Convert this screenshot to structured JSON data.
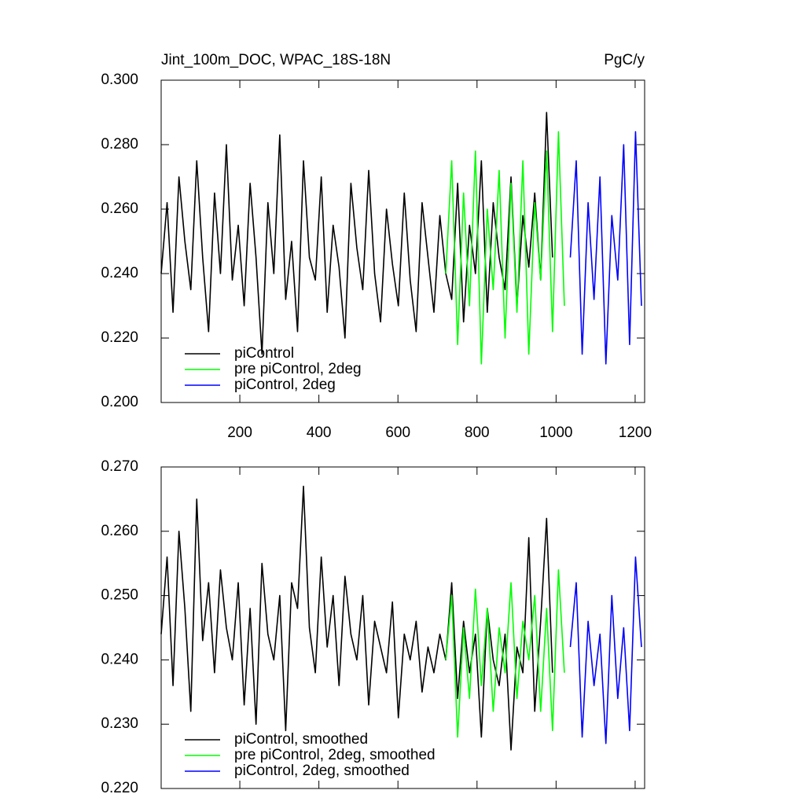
{
  "chart_data": [
    {
      "type": "line",
      "title": "Jint_100m_DOC, WPAC_18S-18N",
      "units_label": "PgC/y",
      "x": [
        1,
        16,
        31,
        46,
        61,
        76,
        91,
        106,
        121,
        136,
        151,
        166,
        181,
        196,
        211,
        226,
        241,
        256,
        271,
        286,
        301,
        316,
        331,
        346,
        361,
        376,
        391,
        406,
        421,
        436,
        451,
        466,
        481,
        496,
        511,
        526,
        541,
        556,
        571,
        586,
        601,
        616,
        631,
        646,
        661,
        676,
        691,
        706,
        721,
        736,
        751,
        766,
        781,
        796,
        811,
        826,
        841,
        856,
        871,
        886,
        901,
        916,
        931,
        946,
        961,
        976,
        991,
        1006,
        1021,
        1036,
        1051,
        1066,
        1081,
        1096,
        1111,
        1126,
        1141,
        1156,
        1171,
        1186,
        1201,
        1216
      ],
      "series": [
        {
          "name": "piControl",
          "color": "#000000",
          "values": [
            0.24,
            0.262,
            0.228,
            0.27,
            0.25,
            0.235,
            0.275,
            0.245,
            0.222,
            0.265,
            0.24,
            0.28,
            0.238,
            0.255,
            0.23,
            0.268,
            0.245,
            0.215,
            0.262,
            0.24,
            0.283,
            0.232,
            0.25,
            0.222,
            0.275,
            0.245,
            0.238,
            0.27,
            0.228,
            0.255,
            0.242,
            0.22,
            0.268,
            0.248,
            0.235,
            0.272,
            0.24,
            0.225,
            0.26,
            0.243,
            0.23,
            0.265,
            0.238,
            0.222,
            0.262,
            0.245,
            0.228,
            0.258,
            0.24,
            0.232,
            0.268,
            0.225,
            0.255,
            0.24,
            0.275,
            0.228,
            0.262,
            0.245,
            0.235,
            0.27,
            0.23,
            0.258,
            0.242,
            0.265,
            0.238,
            0.29,
            0.245,
            null,
            null,
            null,
            null,
            null,
            null,
            null,
            null,
            null,
            null,
            null,
            null,
            null,
            null,
            null
          ]
        },
        {
          "name": "pre piControl, 2deg",
          "color": "#00ff00",
          "values": [
            null,
            null,
            null,
            null,
            null,
            null,
            null,
            null,
            null,
            null,
            null,
            null,
            null,
            null,
            null,
            null,
            null,
            null,
            null,
            null,
            null,
            null,
            null,
            null,
            null,
            null,
            null,
            null,
            null,
            null,
            null,
            null,
            null,
            null,
            null,
            null,
            null,
            null,
            null,
            null,
            null,
            null,
            null,
            null,
            null,
            null,
            null,
            null,
            0.24,
            0.275,
            0.218,
            0.265,
            0.23,
            0.278,
            0.212,
            0.26,
            0.235,
            0.272,
            0.22,
            0.268,
            0.228,
            0.275,
            0.215,
            0.262,
            0.238,
            0.278,
            0.222,
            0.284,
            0.23,
            null,
            null,
            null,
            null,
            null,
            null,
            null,
            null,
            null,
            null,
            null,
            null,
            null
          ]
        },
        {
          "name": "piControl, 2deg",
          "color": "#0000ff",
          "values": [
            null,
            null,
            null,
            null,
            null,
            null,
            null,
            null,
            null,
            null,
            null,
            null,
            null,
            null,
            null,
            null,
            null,
            null,
            null,
            null,
            null,
            null,
            null,
            null,
            null,
            null,
            null,
            null,
            null,
            null,
            null,
            null,
            null,
            null,
            null,
            null,
            null,
            null,
            null,
            null,
            null,
            null,
            null,
            null,
            null,
            null,
            null,
            null,
            null,
            null,
            null,
            null,
            null,
            null,
            null,
            null,
            null,
            null,
            null,
            null,
            null,
            null,
            null,
            null,
            null,
            null,
            null,
            null,
            null,
            0.245,
            0.275,
            0.215,
            0.262,
            0.232,
            0.27,
            0.212,
            0.258,
            0.238,
            0.28,
            0.218,
            0.284,
            0.23
          ]
        }
      ],
      "xlim": [
        1,
        1224
      ],
      "xticks": [
        200,
        400,
        600,
        800,
        1000,
        1200
      ],
      "ylim": [
        0.2,
        0.3
      ],
      "yticks": [
        {
          "value": 0.2,
          "label": "0.200"
        },
        {
          "value": 0.22,
          "label": "0.220"
        },
        {
          "value": 0.24,
          "label": "0.240"
        },
        {
          "value": 0.26,
          "label": "0.260"
        },
        {
          "value": 0.28,
          "label": "0.280"
        },
        {
          "value": 0.3,
          "label": "0.300"
        }
      ],
      "legend": "lower left"
    },
    {
      "type": "line",
      "x": [
        1,
        16,
        31,
        46,
        61,
        76,
        91,
        106,
        121,
        136,
        151,
        166,
        181,
        196,
        211,
        226,
        241,
        256,
        271,
        286,
        301,
        316,
        331,
        346,
        361,
        376,
        391,
        406,
        421,
        436,
        451,
        466,
        481,
        496,
        511,
        526,
        541,
        556,
        571,
        586,
        601,
        616,
        631,
        646,
        661,
        676,
        691,
        706,
        721,
        736,
        751,
        766,
        781,
        796,
        811,
        826,
        841,
        856,
        871,
        886,
        901,
        916,
        931,
        946,
        961,
        976,
        991,
        1006,
        1021,
        1036,
        1051,
        1066,
        1081,
        1096,
        1111,
        1126,
        1141,
        1156,
        1171,
        1186,
        1201,
        1216
      ],
      "series": [
        {
          "name": "piControl, smoothed",
          "color": "#000000",
          "values": [
            0.244,
            0.256,
            0.236,
            0.26,
            0.248,
            0.232,
            0.265,
            0.243,
            0.252,
            0.238,
            0.254,
            0.245,
            0.24,
            0.252,
            0.233,
            0.248,
            0.23,
            0.255,
            0.244,
            0.24,
            0.25,
            0.229,
            0.252,
            0.248,
            0.267,
            0.245,
            0.238,
            0.256,
            0.242,
            0.25,
            0.236,
            0.253,
            0.244,
            0.24,
            0.25,
            0.233,
            0.246,
            0.242,
            0.238,
            0.249,
            0.231,
            0.244,
            0.24,
            0.246,
            0.235,
            0.242,
            0.238,
            0.244,
            0.24,
            0.252,
            0.234,
            0.246,
            0.238,
            0.244,
            0.228,
            0.248,
            0.24,
            0.236,
            0.244,
            0.226,
            0.242,
            0.238,
            0.259,
            0.232,
            0.246,
            0.262,
            0.238,
            null,
            null,
            null,
            null,
            null,
            null,
            null,
            null,
            null,
            null,
            null,
            null,
            null,
            null,
            null
          ]
        },
        {
          "name": "pre piControl, 2deg, smoothed",
          "color": "#00ff00",
          "values": [
            null,
            null,
            null,
            null,
            null,
            null,
            null,
            null,
            null,
            null,
            null,
            null,
            null,
            null,
            null,
            null,
            null,
            null,
            null,
            null,
            null,
            null,
            null,
            null,
            null,
            null,
            null,
            null,
            null,
            null,
            null,
            null,
            null,
            null,
            null,
            null,
            null,
            null,
            null,
            null,
            null,
            null,
            null,
            null,
            null,
            null,
            null,
            null,
            0.24,
            0.25,
            0.228,
            0.245,
            0.234,
            0.251,
            0.236,
            0.248,
            0.232,
            0.245,
            0.238,
            0.252,
            0.234,
            0.246,
            0.24,
            0.25,
            0.232,
            0.248,
            0.229,
            0.254,
            0.238,
            null,
            null,
            null,
            null,
            null,
            null,
            null,
            null,
            null,
            null,
            null,
            null,
            null
          ]
        },
        {
          "name": "piControl, 2deg, smoothed",
          "color": "#0000ff",
          "values": [
            null,
            null,
            null,
            null,
            null,
            null,
            null,
            null,
            null,
            null,
            null,
            null,
            null,
            null,
            null,
            null,
            null,
            null,
            null,
            null,
            null,
            null,
            null,
            null,
            null,
            null,
            null,
            null,
            null,
            null,
            null,
            null,
            null,
            null,
            null,
            null,
            null,
            null,
            null,
            null,
            null,
            null,
            null,
            null,
            null,
            null,
            null,
            null,
            null,
            null,
            null,
            null,
            null,
            null,
            null,
            null,
            null,
            null,
            null,
            null,
            null,
            null,
            null,
            null,
            null,
            null,
            null,
            null,
            null,
            0.242,
            0.252,
            0.228,
            0.246,
            0.236,
            0.244,
            0.227,
            0.25,
            0.234,
            0.245,
            0.229,
            0.256,
            0.242
          ]
        }
      ],
      "xlim": [
        1,
        1224
      ],
      "xticks": [
        200,
        400,
        600,
        800,
        1000,
        1200
      ],
      "ylim": [
        0.22,
        0.27
      ],
      "yticks": [
        {
          "value": 0.22,
          "label": "0.220"
        },
        {
          "value": 0.23,
          "label": "0.230"
        },
        {
          "value": 0.24,
          "label": "0.240"
        },
        {
          "value": 0.25,
          "label": "0.250"
        },
        {
          "value": 0.26,
          "label": "0.260"
        },
        {
          "value": 0.27,
          "label": "0.270"
        }
      ],
      "legend": "lower left"
    }
  ]
}
